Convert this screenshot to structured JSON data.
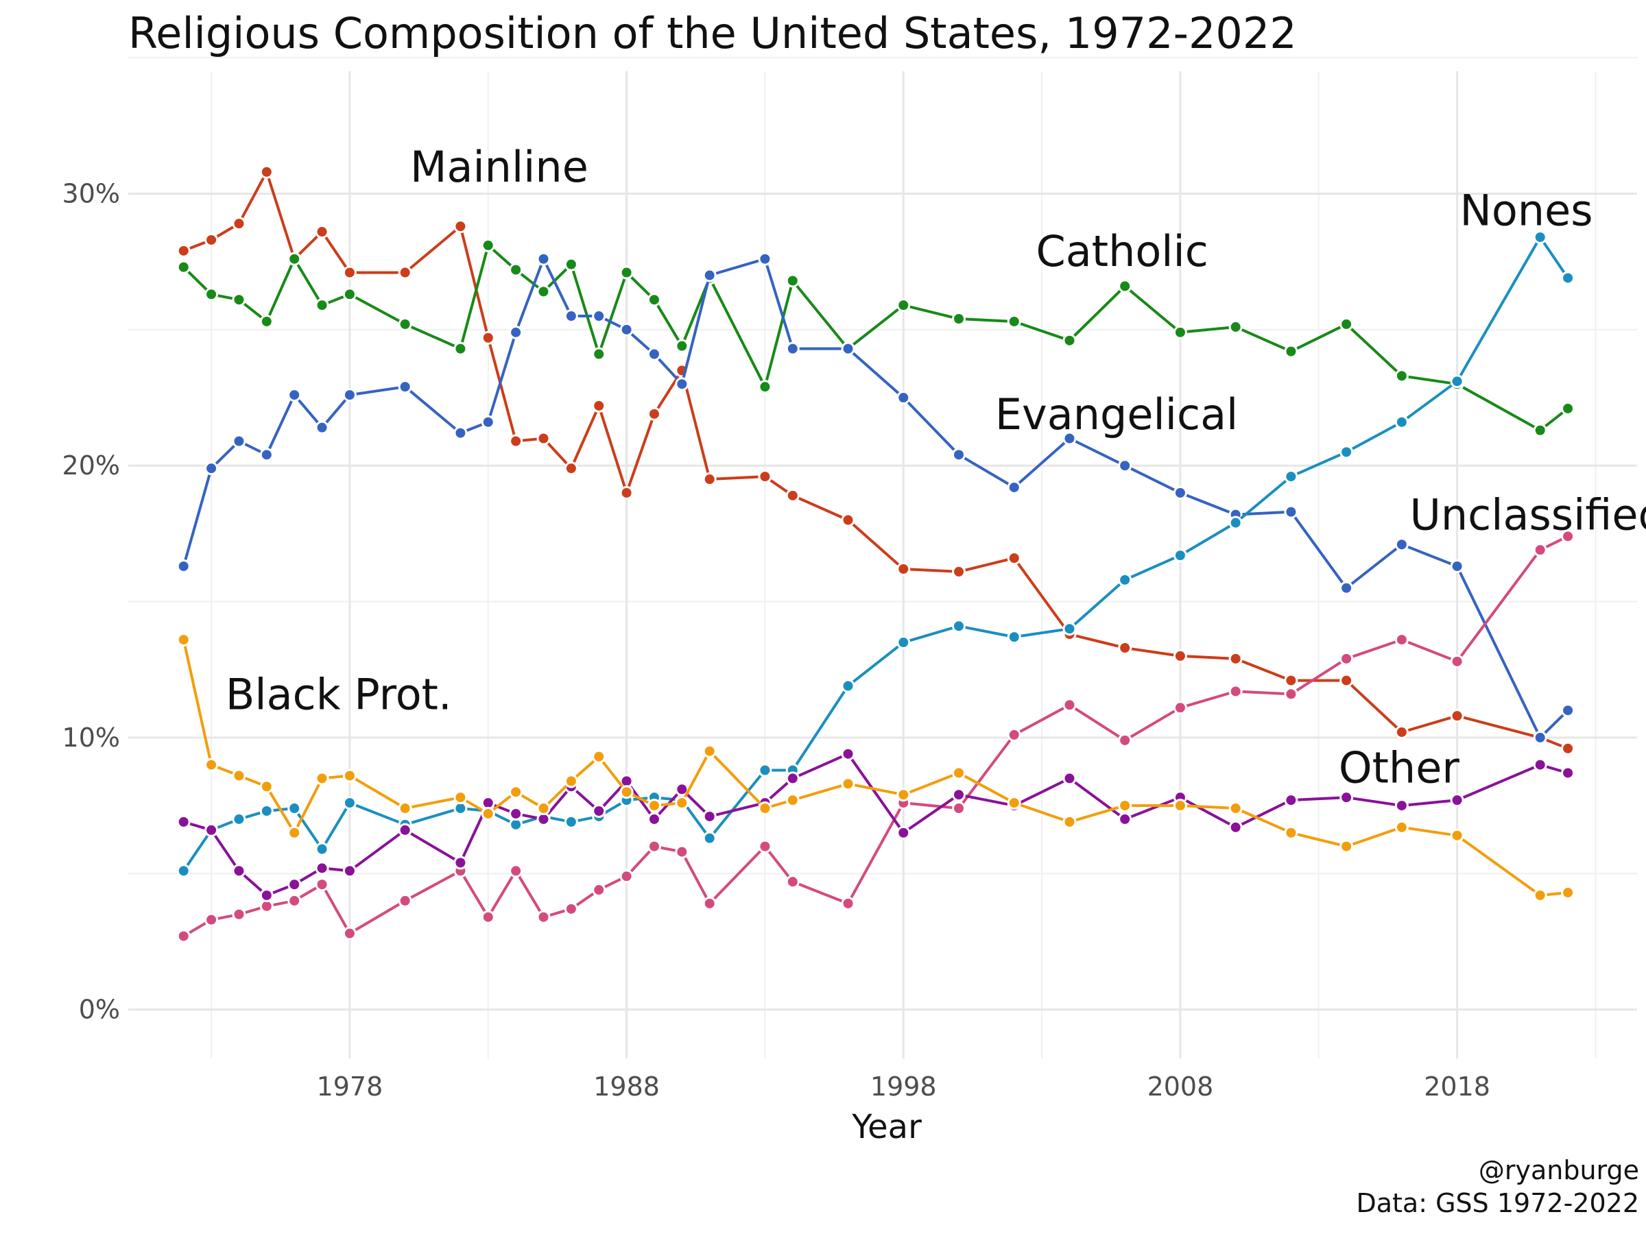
{
  "chart_data": {
    "type": "line",
    "title": "Religious Composition of the United States, 1972-2022",
    "xlabel": "Year",
    "ylabel": "",
    "xlim": [
      1970,
      2024.5
    ],
    "ylim": [
      -1.8,
      34.5
    ],
    "x_ticks": [
      1978,
      1988,
      1998,
      2008,
      2018
    ],
    "y_ticks": [
      0,
      10,
      20,
      30
    ],
    "y_tick_labels": [
      "0%",
      "10%",
      "20%",
      "30%"
    ],
    "grid": true,
    "x": [
      1972,
      1973,
      1974,
      1975,
      1976,
      1977,
      1978,
      1980,
      1982,
      1983,
      1984,
      1985,
      1986,
      1987,
      1988,
      1989,
      1990,
      1991,
      1993,
      1994,
      1996,
      1998,
      2000,
      2002,
      2004,
      2006,
      2008,
      2010,
      2012,
      2014,
      2016,
      2018,
      2021,
      2022
    ],
    "series": [
      {
        "name": "Mainline",
        "color": "#cc3d1a",
        "values": [
          27.9,
          28.3,
          28.9,
          30.8,
          27.6,
          28.6,
          27.1,
          27.1,
          28.8,
          24.7,
          20.9,
          21.0,
          19.9,
          22.2,
          19.0,
          21.9,
          23.5,
          19.5,
          19.6,
          18.9,
          18.0,
          16.2,
          16.1,
          16.6,
          13.8,
          13.3,
          13.0,
          12.9,
          12.1,
          12.1,
          10.2,
          10.8,
          10.0,
          9.6
        ]
      },
      {
        "name": "Catholic",
        "color": "#178a18",
        "values": [
          27.3,
          26.3,
          26.1,
          25.3,
          27.6,
          25.9,
          26.3,
          25.2,
          24.3,
          28.1,
          27.2,
          26.4,
          27.4,
          24.1,
          27.1,
          26.1,
          24.4,
          26.9,
          22.9,
          26.8,
          24.3,
          25.9,
          25.4,
          25.3,
          24.6,
          26.6,
          24.9,
          25.1,
          24.2,
          25.2,
          23.3,
          23.0,
          21.3,
          22.1
        ]
      },
      {
        "name": "Evangelical",
        "color": "#3563c1",
        "values": [
          16.3,
          19.9,
          20.9,
          20.4,
          22.6,
          21.4,
          22.6,
          22.9,
          21.2,
          21.6,
          24.9,
          27.6,
          25.5,
          25.5,
          25.0,
          24.1,
          23.0,
          27.0,
          27.6,
          24.3,
          24.3,
          22.5,
          20.4,
          19.2,
          21.0,
          20.0,
          19.0,
          18.2,
          18.3,
          15.5,
          17.1,
          16.3,
          10.0,
          11.0
        ]
      },
      {
        "name": "Nones",
        "color": "#1a8fbf",
        "values": [
          5.1,
          6.6,
          7.0,
          7.3,
          7.4,
          5.9,
          7.6,
          6.8,
          7.4,
          7.3,
          6.8,
          7.1,
          6.9,
          7.1,
          7.7,
          7.8,
          7.7,
          6.3,
          8.8,
          8.8,
          11.9,
          13.5,
          14.1,
          13.7,
          14.0,
          15.8,
          16.7,
          17.9,
          19.6,
          20.5,
          21.6,
          23.1,
          28.4,
          26.9
        ]
      },
      {
        "name": "Unclassified",
        "color": "#d44a7e",
        "values": [
          2.7,
          3.3,
          3.5,
          3.8,
          4.0,
          4.6,
          2.8,
          4.0,
          5.1,
          3.4,
          5.1,
          3.4,
          3.7,
          4.4,
          4.9,
          6.0,
          5.8,
          3.9,
          6.0,
          4.7,
          3.9,
          7.6,
          7.4,
          10.1,
          11.2,
          9.9,
          11.1,
          11.7,
          11.6,
          12.9,
          13.6,
          12.8,
          16.9,
          17.4
        ]
      },
      {
        "name": "Other",
        "color": "#8a1199",
        "values": [
          6.9,
          6.6,
          5.1,
          4.2,
          4.6,
          5.2,
          5.1,
          6.6,
          5.4,
          7.6,
          7.2,
          7.0,
          8.2,
          7.3,
          8.4,
          7.0,
          8.1,
          7.1,
          7.6,
          8.5,
          9.4,
          6.5,
          7.9,
          7.5,
          8.5,
          7.0,
          7.8,
          6.7,
          7.7,
          7.8,
          7.5,
          7.7,
          9.0,
          8.7
        ]
      },
      {
        "name": "Black Prot.",
        "color": "#f29e0c",
        "values": [
          13.6,
          9.0,
          8.6,
          8.2,
          6.5,
          8.5,
          8.6,
          7.4,
          7.8,
          7.2,
          8.0,
          7.4,
          8.4,
          9.3,
          8.0,
          7.5,
          7.6,
          9.5,
          7.4,
          7.7,
          8.3,
          7.9,
          8.7,
          7.6,
          6.9,
          7.5,
          7.5,
          7.4,
          6.5,
          6.0,
          6.7,
          6.4,
          4.2,
          4.3
        ]
      }
    ],
    "annotations": [
      {
        "text": "Mainline",
        "x": 1983.4,
        "y": 31.0
      },
      {
        "text": "Catholic",
        "x": 2005.9,
        "y": 27.9
      },
      {
        "text": "Evangelical",
        "x": 2005.7,
        "y": 21.9
      },
      {
        "text": "Nones",
        "x": 2020.5,
        "y": 29.4
      },
      {
        "text": "Unclassified",
        "x": 2020.9,
        "y": 18.2
      },
      {
        "text": "Black Prot.",
        "x": 1977.6,
        "y": 11.6
      },
      {
        "text": "Other",
        "x": 2015.9,
        "y": 8.9
      }
    ],
    "caption": [
      "@ryanburge",
      "Data: GSS 1972-2022"
    ]
  }
}
